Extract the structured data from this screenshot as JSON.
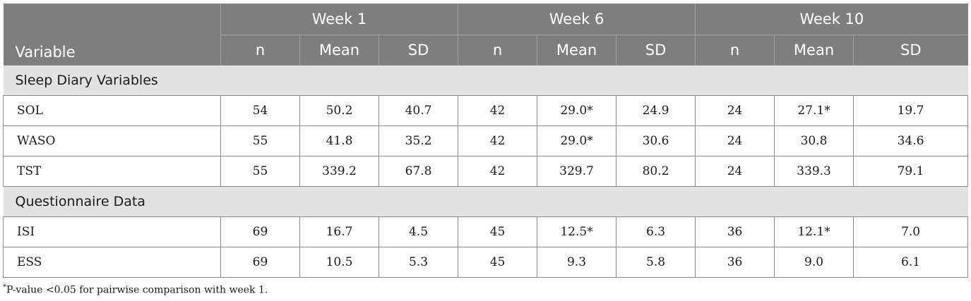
{
  "header": {
    "variable_label": "Variable",
    "groups": [
      "Week 1",
      "Week 6",
      "Week 10"
    ],
    "subcols": [
      "n",
      "Mean",
      "SD"
    ]
  },
  "sections": [
    {
      "title": "Sleep Diary Variables",
      "rows": [
        {
          "label": "SOL",
          "cells": [
            "54",
            "50.2",
            "40.7",
            "42",
            "29.0*",
            "24.9",
            "24",
            "27.1*",
            "19.7"
          ]
        },
        {
          "label": "WASO",
          "cells": [
            "55",
            "41.8",
            "35.2",
            "42",
            "29.0*",
            "30.6",
            "24",
            "30.8",
            "34.6"
          ]
        },
        {
          "label": "TST",
          "cells": [
            "55",
            "339.2",
            "67.8",
            "42",
            "329.7",
            "80.2",
            "24",
            "339.3",
            "79.1"
          ]
        }
      ]
    },
    {
      "title": "Questionnaire Data",
      "rows": [
        {
          "label": "ISI",
          "cells": [
            "69",
            "16.7",
            "4.5",
            "45",
            "12.5*",
            "6.3",
            "36",
            "12.1*",
            "7.0"
          ]
        },
        {
          "label": "ESS",
          "cells": [
            "69",
            "10.5",
            "5.3",
            "45",
            "9.3",
            "5.8",
            "36",
            "9.0",
            "6.1"
          ]
        }
      ]
    }
  ],
  "footnote": {
    "marker": "*",
    "text": "P-value <0.05 for pairwise comparison with week 1."
  }
}
